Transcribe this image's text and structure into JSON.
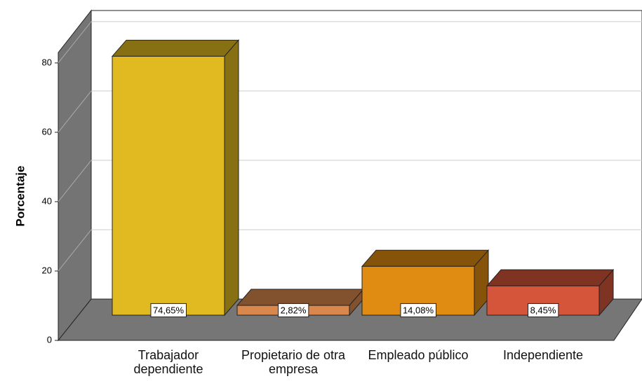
{
  "chart_data": {
    "type": "bar3d",
    "y_label": "Porcentaje",
    "categories": [
      "Trabajador dependiente",
      "Propietario de otra empresa",
      "Empleado público",
      "Independiente"
    ],
    "values": [
      74.65,
      2.82,
      14.08,
      8.45
    ],
    "value_labels": [
      "74,65%",
      "2,82%",
      "14,08%",
      "8,45%"
    ],
    "colors": [
      "#e1b921",
      "#d9874c",
      "#e08b12",
      "#d4553a"
    ],
    "ylim": [
      0,
      83
    ],
    "yticks": [
      0,
      20,
      40,
      60,
      80
    ],
    "grid": true
  }
}
